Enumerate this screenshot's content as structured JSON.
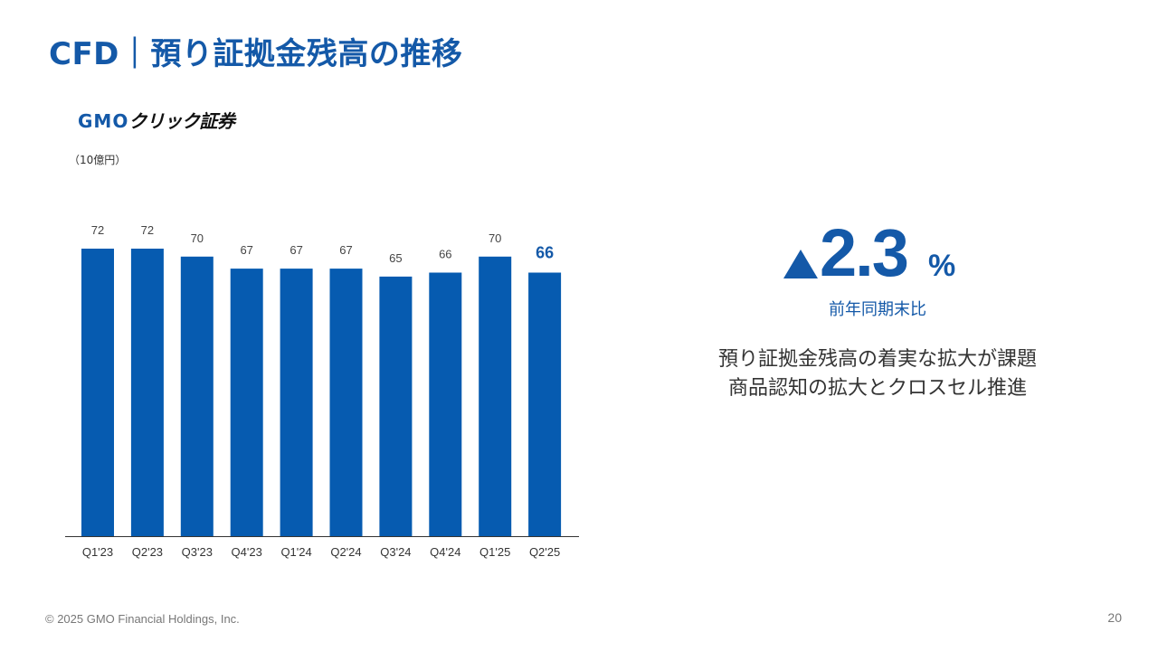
{
  "header": {
    "title": "CFD｜預り証拠金残高の推移"
  },
  "logo": {
    "brand": "GMO",
    "text": "クリック証券"
  },
  "chart_data": {
    "type": "bar",
    "unit_label": "（10億円）",
    "categories": [
      "Q1'23",
      "Q2'23",
      "Q3'23",
      "Q4'23",
      "Q1'24",
      "Q2'24",
      "Q3'24",
      "Q4'24",
      "Q1'25",
      "Q2'25"
    ],
    "values": [
      72,
      72,
      70,
      67,
      67,
      67,
      65,
      66,
      70,
      66
    ],
    "highlight_index": 9,
    "bar_color": "#065bb0",
    "highlight_label_color": "#1459a8",
    "grid": false,
    "ylim": [
      0,
      72
    ]
  },
  "kpi": {
    "value": "2.3",
    "unit": "%",
    "label": "前年同期末比"
  },
  "description": {
    "line1": "預り証拠金残高の着実な拡大が課題",
    "line2": "商品認知の拡大とクロスセル推進"
  },
  "footer": {
    "copyright": "© 2025 GMO Financial Holdings, Inc.",
    "page": "20"
  },
  "colors": {
    "accent": "#1459a8"
  }
}
